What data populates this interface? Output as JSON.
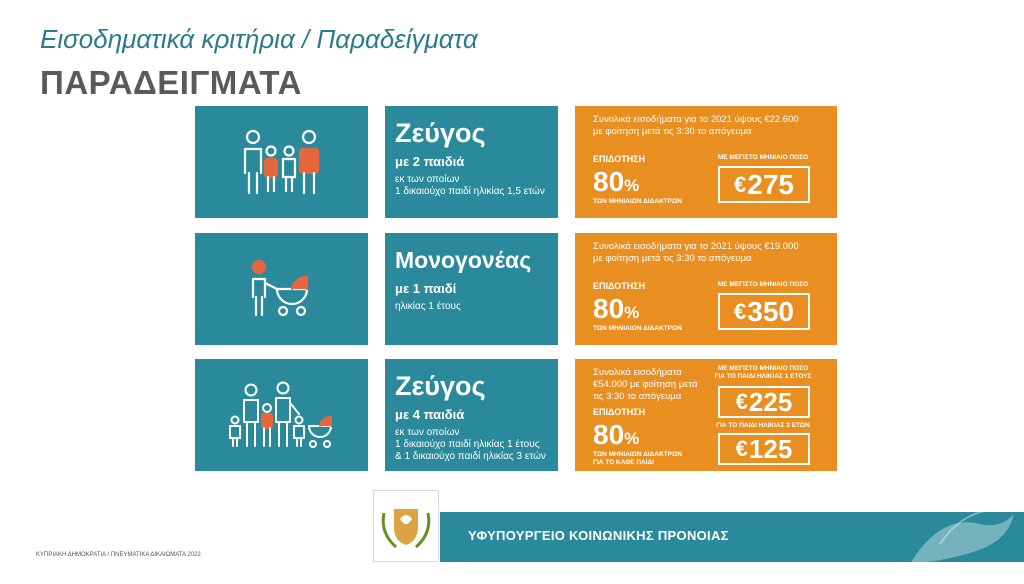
{
  "subtitle": "Εισοδηματικά κριτήρια / Παραδείγματα",
  "title": "ΠΑΡΑΔΕΙΓΜΑΤΑ",
  "examples": [
    {
      "title": "Ζεύγος",
      "sub": "με 2 παιδιά",
      "detail": "εκ των οποίων\n1 δικαιούχο παιδί ηλικίας 1,5 ετών",
      "income": "Συνολικά εισοδήματα για το 2021 ύψους €22.600\nμε φοίτηση μετά τις 3:30 το απόγευμα",
      "subsidy_label": "ΕΠΙΔΟΤΗΣΗ",
      "percent": "80",
      "percent_sym": "%",
      "tuition_label": "ΤΩΝ ΜΗΝΙΑΙΩΝ ΔΙΔΑΚΤΡΩΝ",
      "max_label": "ΜΕ ΜΕΓΙΣΤΟ ΜΗΝΙΑΙΟ ΠΟΣΟ",
      "amount": "275"
    },
    {
      "title": "Μονογονέας",
      "sub": "με 1 παιδί",
      "detail": "ηλικίας 1 έτους",
      "income": "Συνολικά εισοδήματα για το 2021 ύψους €19.000\nμε φοίτηση μετά τις 3:30 το απόγευμα",
      "subsidy_label": "ΕΠΙΔΟΤΗΣΗ",
      "percent": "80",
      "percent_sym": "%",
      "tuition_label": "ΤΩΝ ΜΗΝΙΑΙΩΝ ΔΙΔΑΚΤΡΩΝ",
      "max_label": "ΜΕ ΜΕΓΙΣΤΟ ΜΗΝΙΑΙΟ ΠΟΣΟ",
      "amount": "350"
    },
    {
      "title": "Ζεύγος",
      "sub": "με 4 παιδιά",
      "detail": "εκ των οποίων\n1 δικαιούχο παιδί ηλικίας 1 έτους\n&  1 δικαιούχο παιδί ηλικίας 3 ετών",
      "income": "Συνολικά εισοδήματα\n€54.000 με φοίτηση μετά\nτις 3:30 το απόγευμα",
      "subsidy_label": "ΕΠΙΔΟΤΗΣΗ",
      "percent": "80",
      "percent_sym": "%",
      "tuition_label": "ΤΩΝ ΜΗΝΙΑΙΩΝ ΔΙΔΑΚΤΡΩΝ\nΓΙΑ ΤΟ ΚΑΘΕ ΠΑΙΔΙ",
      "max_label": "ΜΕ ΜΕΓΙΣΤΟ ΜΗΝΙΑΙΟ ΠΟΣΟ\nΓΙΑ ΤΟ ΠΑΙΔΙ ΗΛΙΚΙΑΣ 1 ΕΤΟΥΣ",
      "amount": "225",
      "max_label_2": "ΓΙΑ ΤΟ ΠΑΙΔΙ ΗΛΙΚΙΑΣ 3 ΕΤΩΝ",
      "amount_2": "125"
    }
  ],
  "currency": "€",
  "ministry": "ΥΦΥΠΟΥΡΓΕΙΟ ΚΟΙΝΩΝΙΚΗΣ ΠΡΟΝΟΙΑΣ",
  "footnote": "ΚΥΠΡΙΑΚΗ ΔΗΜΟΚΡΑΤΙΑ / ΠΝΕΥΜΑΤΙΚΑ ΔΙΚΑΙΩΜΑΤΑ 2022",
  "colors": {
    "teal": "#2a8a9c",
    "orange": "#e98e21",
    "accent": "#e8663d"
  }
}
